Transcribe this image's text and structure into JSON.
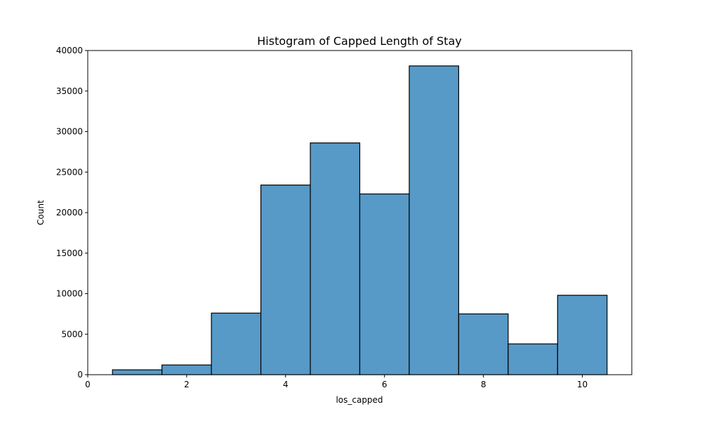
{
  "chart_data": {
    "type": "bar",
    "title": "Histogram of Capped Length of Stay",
    "xlabel": "los_capped",
    "ylabel": "Count",
    "xlim": [
      0,
      11
    ],
    "ylim": [
      0,
      40000
    ],
    "xticks": [
      0,
      2,
      4,
      6,
      8,
      10
    ],
    "yticks": [
      0,
      5000,
      10000,
      15000,
      20000,
      25000,
      30000,
      35000,
      40000
    ],
    "bar_color": "#5799c7",
    "edge_color": "#000000",
    "grid": false,
    "bins": [
      {
        "x0": 0.5,
        "x1": 1.5,
        "count": 600
      },
      {
        "x0": 1.5,
        "x1": 2.5,
        "count": 1200
      },
      {
        "x0": 2.5,
        "x1": 3.5,
        "count": 7600
      },
      {
        "x0": 3.5,
        "x1": 4.5,
        "count": 23400
      },
      {
        "x0": 4.5,
        "x1": 5.5,
        "count": 28600
      },
      {
        "x0": 5.5,
        "x1": 6.5,
        "count": 22300
      },
      {
        "x0": 6.5,
        "x1": 7.5,
        "count": 38100
      },
      {
        "x0": 7.5,
        "x1": 8.5,
        "count": 7500
      },
      {
        "x0": 8.5,
        "x1": 9.5,
        "count": 3800
      },
      {
        "x0": 9.5,
        "x1": 10.5,
        "count": 9800
      }
    ]
  }
}
